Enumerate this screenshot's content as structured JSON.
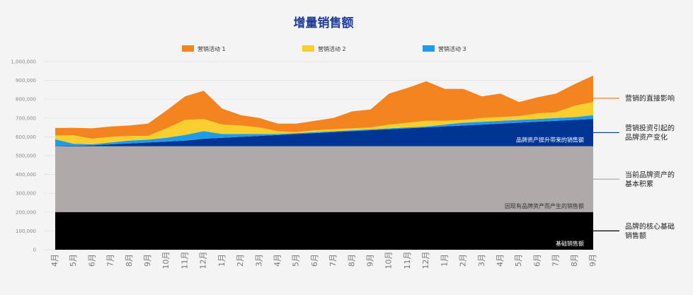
{
  "chart_data": {
    "type": "area",
    "stacked": true,
    "title": "增量销售额",
    "grid": true,
    "legend_position": "top-center",
    "ylim": [
      0,
      1000000
    ],
    "y_ticks": [
      "0",
      "100,000",
      "200,000",
      "300,000",
      "400,000",
      "500,000",
      "600,000",
      "700,000",
      "800,000",
      "900,000",
      "1,000,000"
    ],
    "categories": [
      "4月",
      "5月",
      "6月",
      "7月",
      "8月",
      "9月",
      "10月",
      "11月",
      "12月",
      "1月",
      "2月",
      "3月",
      "4月",
      "5月",
      "6月",
      "7月",
      "8月",
      "9月",
      "10月",
      "11月",
      "12月",
      "1月",
      "2月",
      "3月",
      "4月",
      "5月",
      "6月",
      "7月",
      "8月",
      "9月"
    ],
    "series": [
      {
        "key": "base",
        "color": "#000000",
        "values": [
          200000,
          200000,
          200000,
          200000,
          200000,
          200000,
          200000,
          200000,
          200000,
          200000,
          200000,
          200000,
          200000,
          200000,
          200000,
          200000,
          200000,
          200000,
          200000,
          200000,
          200000,
          200000,
          200000,
          200000,
          200000,
          200000,
          200000,
          200000,
          200000,
          200000
        ]
      },
      {
        "key": "equity",
        "color": "#aeaaaa",
        "values": [
          350000,
          350000,
          350000,
          350000,
          350000,
          350000,
          350000,
          350000,
          350000,
          350000,
          350000,
          350000,
          350000,
          350000,
          350000,
          350000,
          350000,
          350000,
          350000,
          350000,
          350000,
          350000,
          350000,
          350000,
          350000,
          350000,
          350000,
          350000,
          350000,
          350000
        ]
      },
      {
        "key": "uplift",
        "color": "#003594",
        "values": [
          2000,
          3000,
          5000,
          10000,
          15000,
          20000,
          25000,
          30000,
          40000,
          45000,
          50000,
          55000,
          60000,
          65000,
          70000,
          75000,
          80000,
          85000,
          90000,
          95000,
          100000,
          105000,
          110000,
          115000,
          120000,
          125000,
          130000,
          135000,
          140000,
          145000
        ]
      },
      {
        "name": "营销活动 3",
        "color": "#1f9ce8",
        "values": [
          35000,
          10000,
          5000,
          10000,
          15000,
          15000,
          20000,
          30000,
          40000,
          20000,
          15000,
          10000,
          5000,
          5000,
          5000,
          5000,
          5000,
          5000,
          5000,
          5000,
          5000,
          10000,
          15000,
          15000,
          15000,
          15000,
          15000,
          15000,
          15000,
          20000
        ]
      },
      {
        "name": "营销活动 2",
        "color": "#f8cf2d",
        "values": [
          20000,
          45000,
          30000,
          30000,
          25000,
          20000,
          50000,
          80000,
          65000,
          50000,
          45000,
          35000,
          15000,
          5000,
          10000,
          10000,
          10000,
          10000,
          20000,
          25000,
          30000,
          20000,
          15000,
          20000,
          20000,
          20000,
          30000,
          30000,
          60000,
          70000
        ]
      },
      {
        "name": "营销活动 1",
        "color": "#f4841f",
        "values": [
          40000,
          40000,
          55000,
          55000,
          55000,
          65000,
          95000,
          125000,
          150000,
          85000,
          55000,
          50000,
          40000,
          45000,
          50000,
          60000,
          90000,
          95000,
          165000,
          185000,
          210000,
          170000,
          165000,
          115000,
          125000,
          75000,
          85000,
          100000,
          115000,
          140000
        ]
      }
    ],
    "band_labels": [
      {
        "key": "base",
        "text": "基础销售额",
        "color": "#ffffff"
      },
      {
        "key": "equity",
        "text": "因现有品牌资产而产生的销售额",
        "color": "#333333"
      },
      {
        "key": "uplift",
        "text": "品牌资产提升带来的销售额",
        "color": "#ffffff"
      }
    ],
    "annotations": [
      {
        "key": "top",
        "lines": [
          "营销的直接影响"
        ],
        "line_color": "#f4841f"
      },
      {
        "key": "uplift",
        "lines": [
          "营销投资引起的",
          "品牌资产变化"
        ],
        "line_color": "#003594"
      },
      {
        "key": "equity",
        "lines": [
          "当前品牌资产的",
          "基本积累"
        ],
        "line_color": "#aeaaaa"
      },
      {
        "key": "base",
        "lines": [
          "品牌的核心基础",
          "销售额"
        ],
        "line_color": "#000000"
      }
    ]
  }
}
